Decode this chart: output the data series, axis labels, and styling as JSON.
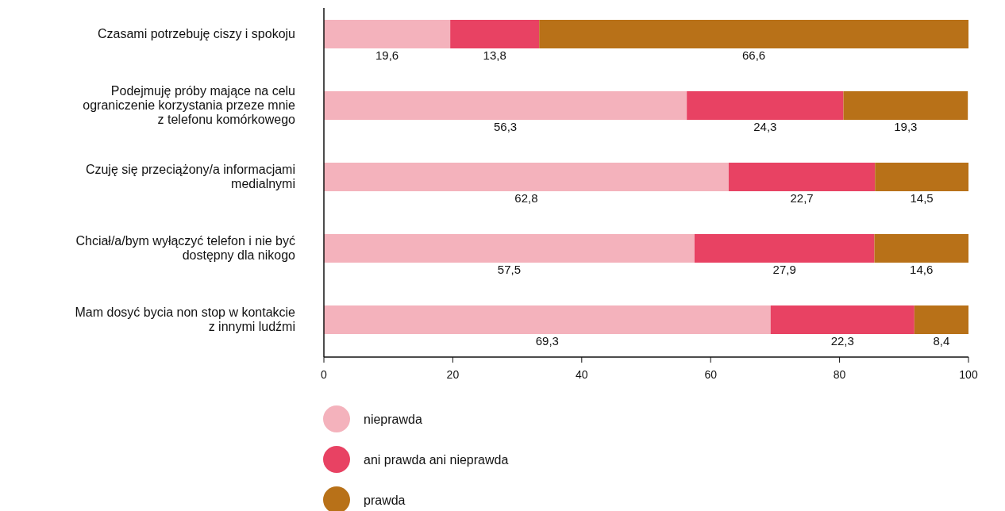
{
  "chart_data": {
    "type": "bar",
    "orientation": "horizontal",
    "stacked": true,
    "categories": [
      "Czasami potrzebuję ciszy i spokoju",
      "Podejmuję próby mające na celu\nograniczenie korzystania przeze mnie\nz telefonu komórkowego",
      "Czuję się przeciążony/a informacjami\nmedialnymi",
      "Chciał/a/bym wyłączyć telefon i nie być\ndostępny dla nikogo",
      "Mam dosyć bycia non stop w kontakcie\nz innymi ludźmi"
    ],
    "series": [
      {
        "name": "nieprawda",
        "color": "#f4b2bc",
        "values": [
          19.6,
          56.3,
          62.8,
          57.5,
          69.3
        ],
        "value_labels": [
          "19,6",
          "56,3",
          "62,8",
          "57,5",
          "69,3"
        ]
      },
      {
        "name": "ani prawda ani nieprawda",
        "color": "#e84263",
        "values": [
          13.8,
          24.3,
          22.7,
          27.9,
          22.3
        ],
        "value_labels": [
          "13,8",
          "24,3",
          "22,7",
          "27,9",
          "22,3"
        ]
      },
      {
        "name": "prawda",
        "color": "#b87118",
        "values": [
          66.6,
          19.3,
          14.5,
          14.6,
          8.4
        ],
        "value_labels": [
          "66,6",
          "19,3",
          "14,5",
          "14,6",
          "8,4"
        ]
      }
    ],
    "xlim": [
      0,
      100
    ],
    "xticks": [
      0,
      20,
      40,
      60,
      80,
      100
    ],
    "legend": "bottom"
  }
}
